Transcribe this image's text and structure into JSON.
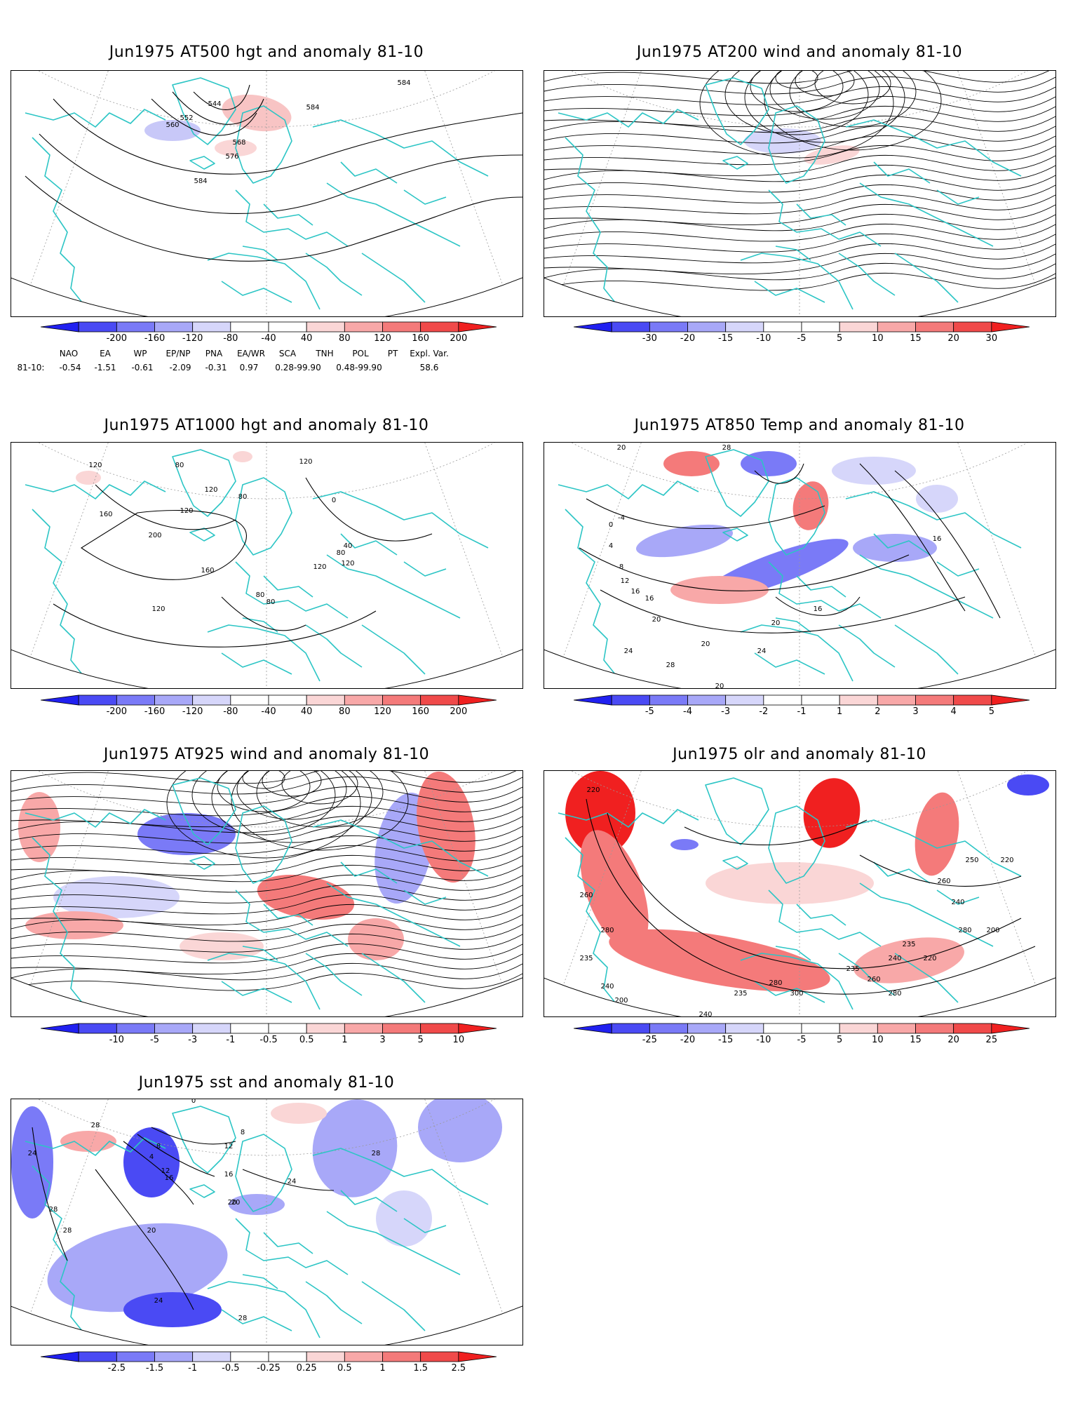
{
  "panels": [
    {
      "id": "p500",
      "title": "Jun1975 AT500 hgt and anomaly 81-10",
      "contour_labels": [
        "584",
        "584",
        "584",
        "576",
        "568",
        "560",
        "552",
        "544"
      ],
      "colorbar": {
        "labels": [
          "-200",
          "-160",
          "-120",
          "-80",
          "-40",
          "40",
          "80",
          "120",
          "160",
          "200"
        ]
      }
    },
    {
      "id": "p200",
      "title": "Jun1975 AT200 wind and anomaly 81-10",
      "contour_labels": [],
      "colorbar": {
        "labels": [
          "-30",
          "-20",
          "-15",
          "-10",
          "-5",
          "5",
          "10",
          "15",
          "20",
          "30"
        ]
      }
    },
    {
      "id": "p1000",
      "title": "Jun1975 AT1000 hgt and anomaly 81-10",
      "contour_labels": [
        "120",
        "160",
        "200",
        "160",
        "120",
        "80",
        "120",
        "80",
        "120",
        "40",
        "0",
        "80",
        "120",
        "80",
        "80",
        "120",
        "120"
      ],
      "colorbar": {
        "labels": [
          "-200",
          "-160",
          "-120",
          "-80",
          "-40",
          "40",
          "80",
          "120",
          "160",
          "200"
        ]
      }
    },
    {
      "id": "p850",
      "title": "Jun1975 AT850 Temp and anomaly 81-10",
      "contour_labels": [
        "20",
        "-4",
        "0",
        "4",
        "8",
        "12",
        "16",
        "16",
        "20",
        "24",
        "28",
        "20",
        "24",
        "20",
        "16",
        "28",
        "20",
        "16"
      ],
      "colorbar": {
        "labels": [
          "-5",
          "-4",
          "-3",
          "-2",
          "-1",
          "1",
          "2",
          "3",
          "4",
          "5"
        ]
      }
    },
    {
      "id": "p925",
      "title": "Jun1975 AT925 wind and anomaly 81-10",
      "contour_labels": [],
      "colorbar": {
        "labels": [
          "-10",
          "-5",
          "-3",
          "-1",
          "-0.5",
          "0.5",
          "1",
          "3",
          "5",
          "10"
        ]
      }
    },
    {
      "id": "polr",
      "title": "Jun1975 olr and anomaly 81-10",
      "contour_labels": [
        "220",
        "260",
        "280",
        "235",
        "240",
        "200",
        "220",
        "260",
        "240",
        "235",
        "280",
        "300",
        "235",
        "260",
        "280",
        "240",
        "235",
        "220",
        "280",
        "200",
        "220",
        "250",
        "240",
        "260"
      ],
      "colorbar": {
        "labels": [
          "-25",
          "-20",
          "-15",
          "-10",
          "-5",
          "5",
          "10",
          "15",
          "20",
          "25"
        ]
      }
    },
    {
      "id": "psst",
      "title": "Jun1975 sst and anomaly 81-10",
      "contour_labels": [
        "24",
        "28",
        "28",
        "28",
        "0",
        "8",
        "4",
        "12",
        "16",
        "20",
        "24",
        "20",
        "28",
        "24",
        "28",
        "28",
        "12",
        "8",
        "16",
        "20"
      ],
      "colorbar": {
        "labels": [
          "-2.5",
          "-1.5",
          "-1",
          "-0.5",
          "-0.25",
          "0.25",
          "0.5",
          "1",
          "1.5",
          "2.5"
        ]
      }
    }
  ],
  "index_table": {
    "headers": [
      "NAO",
      "EA",
      "WP",
      "EP/NP",
      "PNA",
      "EA/WR",
      "SCA",
      "TNH",
      "POL",
      "PT",
      "Expl. Var."
    ],
    "row_label": "81-10:",
    "values": [
      "-0.54",
      "-1.51",
      "-0.61",
      "-2.09",
      "-0.31",
      "0.97",
      "0.28-99.90",
      "0.48-99.90",
      "58.6"
    ]
  },
  "colors": {
    "coast": "#2cc5c5",
    "contour": "#000000",
    "scale": [
      "#2020f0",
      "#4a4af4",
      "#7a7af7",
      "#a8a8f8",
      "#d6d6fa",
      "#ffffff",
      "#fad6d6",
      "#f8a8a8",
      "#f47a7a",
      "#f04a4a",
      "#f02020"
    ]
  }
}
